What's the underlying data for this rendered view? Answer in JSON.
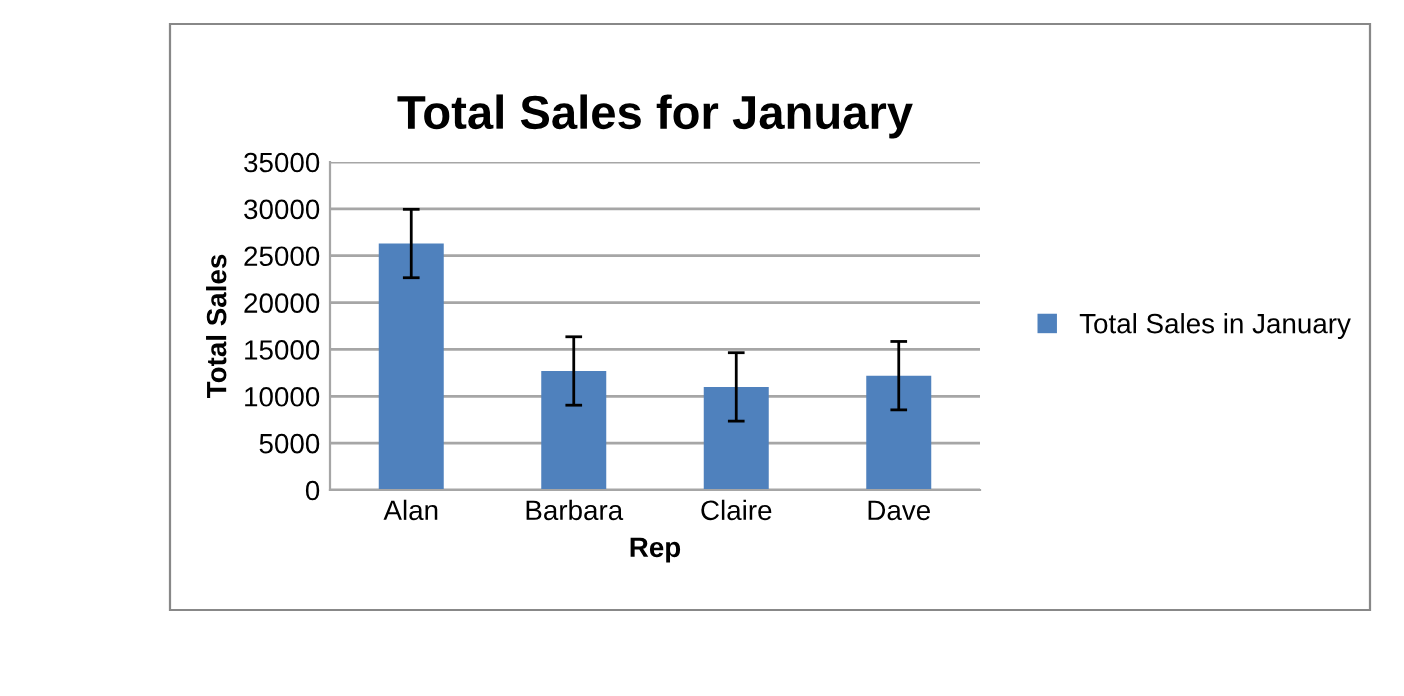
{
  "chart_data": {
    "type": "bar",
    "title": "Total Sales for January",
    "xlabel": "Rep",
    "ylabel": "Total Sales",
    "categories": [
      "Alan",
      "Barbara",
      "Claire",
      "Dave"
    ],
    "series": [
      {
        "name": "Total Sales in January",
        "color": "#4f81bd",
        "values": [
          26300,
          12700,
          11000,
          12200
        ],
        "errors": [
          3650,
          3650,
          3650,
          3650
        ]
      }
    ],
    "ylim": [
      0,
      35000
    ],
    "yticks": [
      0,
      5000,
      10000,
      15000,
      20000,
      25000,
      30000,
      35000
    ],
    "grid": "y",
    "legend": "right"
  }
}
